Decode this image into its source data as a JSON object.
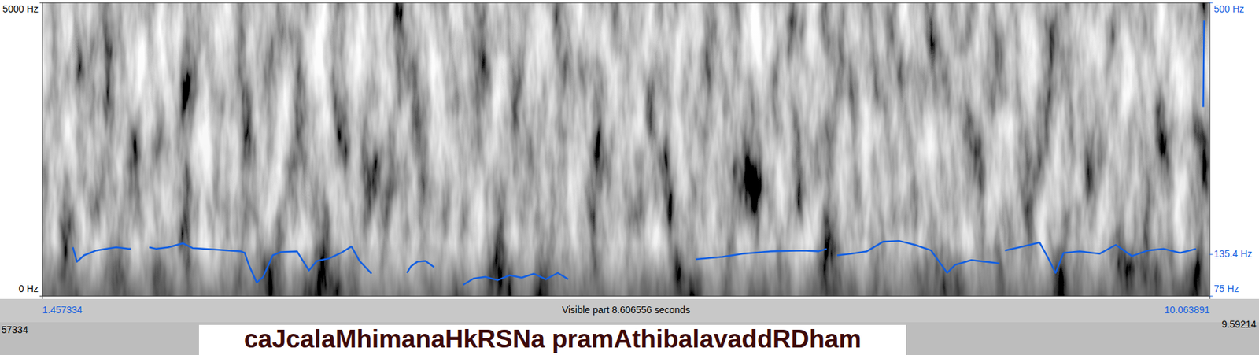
{
  "chart_data": {
    "type": "line",
    "title": "caJcalaMhimanaHkRSNa pramAthibalavaddRDham",
    "annotations": [
      "Visible part 8.606556 seconds",
      "57334",
      "9.59214"
    ],
    "x": [
      1.682,
      1.712,
      1.765,
      1.854,
      2.002,
      2.091,
      2.108,
      2.17,
      2.245,
      2.298,
      2.387,
      2.493,
      2.564,
      2.742,
      2.919,
      2.949,
      2.979,
      3.038,
      3.085,
      3.156,
      3.215,
      3.334,
      3.422,
      3.482,
      3.57,
      3.659,
      3.736,
      3.795,
      3.884,
      4.0,
      4.145,
      4.174,
      4.222,
      4.281,
      4.346,
      4.45,
      4.559,
      4.636,
      4.725,
      4.813,
      4.902,
      4.991,
      5.08,
      5.169,
      5.257,
      5.334,
      5.8,
      6.275,
      6.471,
      6.619,
      6.826,
      7.063,
      7.181,
      7.24,
      7.28,
      7.317,
      7.418,
      7.536,
      7.655,
      7.773,
      7.891,
      8.01,
      8.069,
      8.128,
      8.187,
      8.306,
      8.513,
      8.53,
      8.554,
      8.661,
      8.809,
      8.868,
      8.927,
      8.986,
      9.105,
      9.253,
      9.371,
      9.49,
      9.608,
      9.726,
      9.845,
      9.963,
      9.99,
      10.016,
      10.022
    ],
    "series": [
      {
        "color": "#1560e0",
        "axis": "y2",
        "values": [
          145.8,
          124.9,
          134.2,
          141.2,
          145.8,
          143.5,
          143.5,
          null,
          145.8,
          143.5,
          145.8,
          151.6,
          144.7,
          142.3,
          140.0,
          137.7,
          120.3,
          94.7,
          102.9,
          134.2,
          138.9,
          140.0,
          112.2,
          126.1,
          129.6,
          137.7,
          147.0,
          126.1,
          107.5,
          null,
          108.7,
          118.0,
          124.9,
          126.1,
          116.8,
          null,
          91.3,
          100.5,
          102.9,
          98.2,
          105.2,
          101.7,
          107.5,
          99.4,
          108.7,
          99.4,
          null,
          128.4,
          131.9,
          136.5,
          140.0,
          141.2,
          140.0,
          143.5,
          null,
          134.2,
          136.5,
          140.0,
          153.9,
          155.1,
          149.3,
          141.2,
          124.9,
          108.7,
          120.3,
          127.2,
          122.6,
          null,
          141.2,
          145.8,
          152.8,
          131.9,
          108.7,
          137.7,
          140.0,
          136.5,
          149.3,
          133.1,
          141.2,
          143.5,
          137.7,
          143.5,
          null,
          349,
          474
        ]
      }
    ],
    "xlim": [
      1.457334,
      10.063891
    ],
    "xticks": [
      1.457334,
      10.063891
    ],
    "ylim": [
      0,
      5000
    ],
    "yticks": [
      {
        "value": 0,
        "label": "0 Hz"
      },
      {
        "value": 5000,
        "label": "5000 Hz"
      }
    ],
    "y2lim": [
      75,
      500
    ],
    "y2ticks": [
      {
        "value": 75,
        "label": "75 Hz"
      },
      {
        "value": 135.4,
        "label": "135.4 Hz"
      },
      {
        "value": 500,
        "label": "500 Hz"
      }
    ],
    "grid": false
  }
}
